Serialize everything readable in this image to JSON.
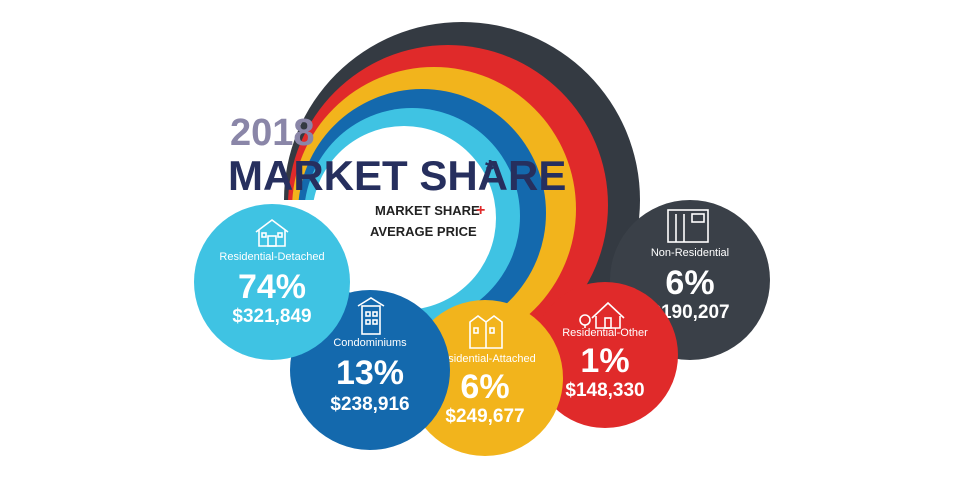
{
  "title": {
    "year": "2018",
    "main": "MARKET SHARE",
    "asterisk": "*"
  },
  "subtitle": {
    "line1": "MARKET SHARE",
    "plus": "+",
    "line2": "AVERAGE PRICE"
  },
  "segments": [
    {
      "label": "Residential-Detached",
      "share": "74%",
      "price": "$321,849"
    },
    {
      "label": "Condominiums",
      "share": "13%",
      "price": "$238,916"
    },
    {
      "label": "Residential-Attached",
      "share": "6%",
      "price": "$249,677"
    },
    {
      "label": "Residential-Other",
      "share": "1%",
      "price": "$148,330"
    },
    {
      "label": "Non-Residential",
      "share": "6%",
      "price": "$190,207"
    }
  ]
}
